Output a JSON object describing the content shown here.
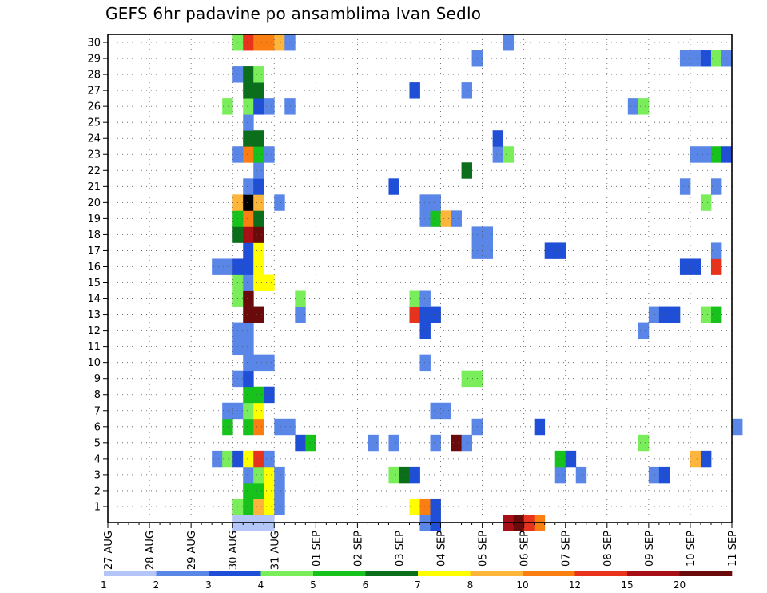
{
  "title": "GEFS 6hr padavine po ansamblima Ivan Sedlo",
  "chart_data": {
    "type": "heatmap",
    "title": "GEFS 6hr padavine po ansamblima Ivan Sedlo",
    "x_tick_labels": [
      "27 AUG",
      "28 AUG",
      "29 AUG",
      "30 AUG",
      "31 AUG",
      "01 SEP",
      "02 SEP",
      "03 SEP",
      "04 SEP",
      "05 SEP",
      "06 SEP",
      "07 SEP",
      "08 SEP",
      "09 SEP",
      "10 SEP",
      "11 SEP"
    ],
    "x_start": "2023-08-27T00",
    "x_step_hours": 6,
    "y_tick_labels": [
      1,
      2,
      3,
      4,
      5,
      6,
      7,
      8,
      9,
      10,
      11,
      12,
      13,
      14,
      15,
      16,
      17,
      18,
      19,
      20,
      21,
      22,
      23,
      24,
      25,
      26,
      27,
      28,
      29,
      30
    ],
    "ylim": [
      0,
      30
    ],
    "grid": true,
    "colorbar": {
      "levels": [
        1,
        2,
        3,
        4,
        5,
        6,
        7,
        8,
        10,
        12,
        15,
        20
      ],
      "colors": [
        "#b3c6f7",
        "#5a86e8",
        "#1f4fd6",
        "#7aee5a",
        "#16c21b",
        "#0b6e1a",
        "#ffff00",
        "#fdb53c",
        "#fb7e12",
        "#e8331c",
        "#a50f15",
        "#6b0a0a"
      ]
    },
    "cells": [
      [
        "2023-08-30T00",
        0,
        0
      ],
      [
        "2023-08-30T06",
        0,
        0
      ],
      [
        "2023-08-30T12",
        0,
        0
      ],
      [
        "2023-08-30T18",
        0,
        0
      ],
      [
        "2023-09-03T12",
        0,
        1
      ],
      [
        "2023-09-03T18",
        0,
        2
      ],
      [
        "2023-09-05T12",
        0,
        10
      ],
      [
        "2023-09-05T18",
        0,
        11
      ],
      [
        "2023-09-06T00",
        0,
        9
      ],
      [
        "2023-09-06T06",
        0,
        8
      ],
      [
        "2023-08-30T00",
        1,
        3
      ],
      [
        "2023-08-30T06",
        1,
        4
      ],
      [
        "2023-08-30T12",
        1,
        7
      ],
      [
        "2023-08-30T18",
        1,
        6
      ],
      [
        "2023-08-31T00",
        1,
        1
      ],
      [
        "2023-09-03T06",
        1,
        6
      ],
      [
        "2023-09-03T12",
        1,
        8
      ],
      [
        "2023-09-03T18",
        1,
        2
      ],
      [
        "2023-08-30T06",
        2,
        4
      ],
      [
        "2023-08-30T12",
        2,
        4
      ],
      [
        "2023-08-30T18",
        2,
        6
      ],
      [
        "2023-08-31T00",
        2,
        1
      ],
      [
        "2023-08-30T06",
        3,
        1
      ],
      [
        "2023-08-30T12",
        3,
        3
      ],
      [
        "2023-08-30T18",
        3,
        6
      ],
      [
        "2023-08-31T00",
        3,
        1
      ],
      [
        "2023-09-02T18",
        3,
        3
      ],
      [
        "2023-09-03T00",
        3,
        5
      ],
      [
        "2023-09-03T06",
        3,
        2
      ],
      [
        "2023-09-06T18",
        3,
        1
      ],
      [
        "2023-09-07T06",
        3,
        1
      ],
      [
        "2023-09-09T00",
        3,
        1
      ],
      [
        "2023-09-09T06",
        3,
        2
      ],
      [
        "2023-08-29T12",
        4,
        1
      ],
      [
        "2023-08-29T18",
        4,
        3
      ],
      [
        "2023-08-30T00",
        4,
        2
      ],
      [
        "2023-08-30T06",
        4,
        6
      ],
      [
        "2023-08-30T12",
        4,
        9
      ],
      [
        "2023-08-30T18",
        4,
        1
      ],
      [
        "2023-09-06T18",
        4,
        4
      ],
      [
        "2023-09-07T00",
        4,
        2
      ],
      [
        "2023-09-10T00",
        4,
        7
      ],
      [
        "2023-09-10T06",
        4,
        2
      ],
      [
        "2023-08-31T12",
        5,
        2
      ],
      [
        "2023-08-31T18",
        5,
        4
      ],
      [
        "2023-09-02T06",
        5,
        1
      ],
      [
        "2023-09-02T18",
        5,
        1
      ],
      [
        "2023-09-03T18",
        5,
        1
      ],
      [
        "2023-09-04T06",
        5,
        11
      ],
      [
        "2023-09-04T12",
        5,
        1
      ],
      [
        "2023-09-08T18",
        5,
        3
      ],
      [
        "2023-08-29T18",
        6,
        4
      ],
      [
        "2023-08-30T06",
        6,
        4
      ],
      [
        "2023-08-30T12",
        6,
        8
      ],
      [
        "2023-08-31T00",
        6,
        1
      ],
      [
        "2023-08-31T06",
        6,
        1
      ],
      [
        "2023-09-04T18",
        6,
        1
      ],
      [
        "2023-09-06T06",
        6,
        2
      ],
      [
        "2023-09-11T00",
        6,
        1
      ],
      [
        "2023-08-29T18",
        7,
        1
      ],
      [
        "2023-08-30T00",
        7,
        1
      ],
      [
        "2023-08-30T06",
        7,
        3
      ],
      [
        "2023-08-30T12",
        7,
        6
      ],
      [
        "2023-09-03T18",
        7,
        1
      ],
      [
        "2023-09-04T00",
        7,
        1
      ],
      [
        "2023-08-30T06",
        8,
        4
      ],
      [
        "2023-08-30T12",
        8,
        4
      ],
      [
        "2023-08-30T18",
        8,
        2
      ],
      [
        "2023-08-30T00",
        9,
        1
      ],
      [
        "2023-08-30T06",
        9,
        2
      ],
      [
        "2023-09-04T12",
        9,
        3
      ],
      [
        "2023-09-04T18",
        9,
        3
      ],
      [
        "2023-08-30T06",
        10,
        1
      ],
      [
        "2023-08-30T12",
        10,
        1
      ],
      [
        "2023-08-30T18",
        10,
        1
      ],
      [
        "2023-09-03T12",
        10,
        1
      ],
      [
        "2023-08-30T00",
        11,
        1
      ],
      [
        "2023-08-30T06",
        11,
        1
      ],
      [
        "2023-08-30T00",
        12,
        1
      ],
      [
        "2023-08-30T06",
        12,
        1
      ],
      [
        "2023-09-03T12",
        12,
        2
      ],
      [
        "2023-09-08T18",
        12,
        1
      ],
      [
        "2023-08-30T06",
        13,
        11
      ],
      [
        "2023-08-30T12",
        13,
        11
      ],
      [
        "2023-08-31T12",
        13,
        1
      ],
      [
        "2023-09-03T06",
        13,
        9
      ],
      [
        "2023-09-03T12",
        13,
        2
      ],
      [
        "2023-09-03T18",
        13,
        2
      ],
      [
        "2023-09-09T00",
        13,
        1
      ],
      [
        "2023-09-09T06",
        13,
        2
      ],
      [
        "2023-09-09T12",
        13,
        2
      ],
      [
        "2023-09-10T06",
        13,
        3
      ],
      [
        "2023-09-10T12",
        13,
        4
      ],
      [
        "2023-08-30T00",
        14,
        3
      ],
      [
        "2023-08-30T06",
        14,
        11
      ],
      [
        "2023-08-31T12",
        14,
        3
      ],
      [
        "2023-09-03T06",
        14,
        3
      ],
      [
        "2023-09-03T12",
        14,
        1
      ],
      [
        "2023-08-30T00",
        15,
        3
      ],
      [
        "2023-08-30T06",
        15,
        1
      ],
      [
        "2023-08-30T12",
        15,
        6
      ],
      [
        "2023-08-30T18",
        15,
        6
      ],
      [
        "2023-08-29T12",
        16,
        1
      ],
      [
        "2023-08-29T18",
        16,
        1
      ],
      [
        "2023-08-30T00",
        16,
        2
      ],
      [
        "2023-08-30T06",
        16,
        2
      ],
      [
        "2023-08-30T12",
        16,
        6
      ],
      [
        "2023-09-09T18",
        16,
        2
      ],
      [
        "2023-09-10T00",
        16,
        2
      ],
      [
        "2023-09-10T12",
        16,
        9
      ],
      [
        "2023-08-30T06",
        17,
        2
      ],
      [
        "2023-08-30T12",
        17,
        6
      ],
      [
        "2023-09-04T18",
        17,
        1
      ],
      [
        "2023-09-05T00",
        17,
        1
      ],
      [
        "2023-09-06T12",
        17,
        2
      ],
      [
        "2023-09-06T18",
        17,
        2
      ],
      [
        "2023-09-10T12",
        17,
        1
      ],
      [
        "2023-08-30T00",
        18,
        5
      ],
      [
        "2023-08-30T06",
        18,
        10
      ],
      [
        "2023-08-30T12",
        18,
        11
      ],
      [
        "2023-09-04T18",
        18,
        1
      ],
      [
        "2023-09-05T00",
        18,
        1
      ],
      [
        "2023-08-30T00",
        19,
        4
      ],
      [
        "2023-08-30T06",
        19,
        8
      ],
      [
        "2023-08-30T12",
        19,
        5
      ],
      [
        "2023-09-03T12",
        19,
        1
      ],
      [
        "2023-09-03T18",
        19,
        4
      ],
      [
        "2023-09-04T00",
        19,
        7
      ],
      [
        "2023-09-04T06",
        19,
        1
      ],
      [
        "2023-08-30T00",
        20,
        7
      ],
      [
        "2023-08-30T06",
        20,
        12
      ],
      [
        "2023-08-30T12",
        20,
        7
      ],
      [
        "2023-08-31T00",
        20,
        1
      ],
      [
        "2023-09-03T12",
        20,
        1
      ],
      [
        "2023-09-03T18",
        20,
        1
      ],
      [
        "2023-09-10T06",
        20,
        3
      ],
      [
        "2023-08-30T06",
        21,
        1
      ],
      [
        "2023-08-30T12",
        21,
        2
      ],
      [
        "2023-09-02T18",
        21,
        2
      ],
      [
        "2023-09-09T18",
        21,
        1
      ],
      [
        "2023-09-10T12",
        21,
        1
      ],
      [
        "2023-08-30T12",
        22,
        1
      ],
      [
        "2023-09-04T12",
        22,
        5
      ],
      [
        "2023-08-30T00",
        23,
        1
      ],
      [
        "2023-08-30T06",
        23,
        8
      ],
      [
        "2023-08-30T12",
        23,
        4
      ],
      [
        "2023-08-30T18",
        23,
        1
      ],
      [
        "2023-09-05T06",
        23,
        1
      ],
      [
        "2023-09-05T12",
        23,
        3
      ],
      [
        "2023-09-10T00",
        23,
        1
      ],
      [
        "2023-09-10T06",
        23,
        1
      ],
      [
        "2023-09-10T12",
        23,
        4
      ],
      [
        "2023-09-10T18",
        23,
        2
      ],
      [
        "2023-08-30T06",
        24,
        5
      ],
      [
        "2023-08-30T12",
        24,
        5
      ],
      [
        "2023-09-05T06",
        24,
        2
      ],
      [
        "2023-08-30T06",
        25,
        1
      ],
      [
        "2023-08-29T18",
        26,
        3
      ],
      [
        "2023-08-30T06",
        26,
        3
      ],
      [
        "2023-08-30T12",
        26,
        2
      ],
      [
        "2023-08-30T18",
        26,
        1
      ],
      [
        "2023-08-31T06",
        26,
        1
      ],
      [
        "2023-09-08T12",
        26,
        1
      ],
      [
        "2023-09-08T18",
        26,
        3
      ],
      [
        "2023-08-30T06",
        27,
        5
      ],
      [
        "2023-08-30T12",
        27,
        5
      ],
      [
        "2023-09-03T06",
        27,
        2
      ],
      [
        "2023-09-04T12",
        27,
        1
      ],
      [
        "2023-08-30T00",
        28,
        1
      ],
      [
        "2023-08-30T06",
        28,
        5
      ],
      [
        "2023-08-30T12",
        28,
        3
      ],
      [
        "2023-09-04T18",
        29,
        1
      ],
      [
        "2023-09-09T18",
        29,
        1
      ],
      [
        "2023-09-10T00",
        29,
        1
      ],
      [
        "2023-09-10T06",
        29,
        2
      ],
      [
        "2023-09-10T12",
        29,
        3
      ],
      [
        "2023-09-10T18",
        29,
        1
      ],
      [
        "2023-08-30T00",
        30,
        3
      ],
      [
        "2023-08-30T06",
        30,
        9
      ],
      [
        "2023-08-30T12",
        30,
        8
      ],
      [
        "2023-08-30T18",
        30,
        8
      ],
      [
        "2023-08-31T00",
        30,
        7
      ],
      [
        "2023-08-31T06",
        30,
        1
      ],
      [
        "2023-09-05T12",
        30,
        1
      ]
    ]
  }
}
